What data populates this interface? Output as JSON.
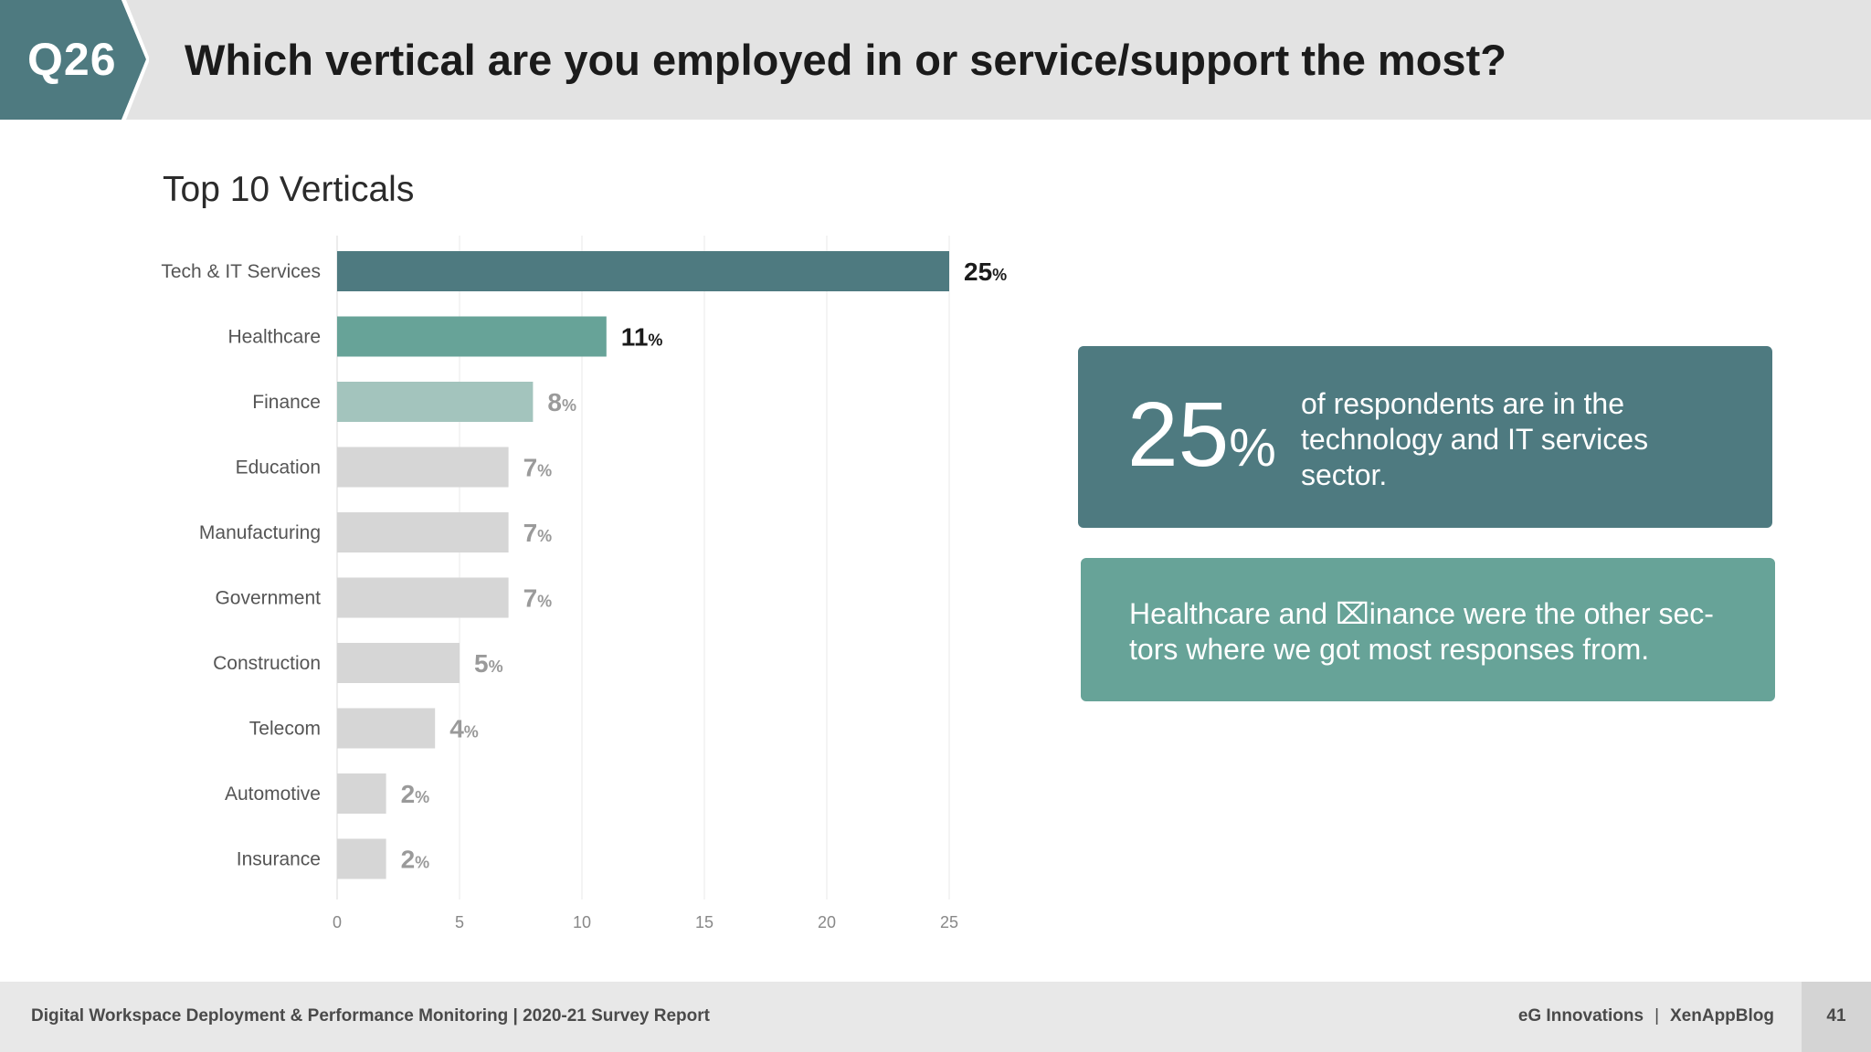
{
  "header": {
    "badge": "Q26",
    "question": "Which vertical are you employed in or service/support the most?"
  },
  "colors": {
    "header_badge": "#4e7a80",
    "bar_top": "#4e7a80",
    "bar_second": "#67a398",
    "bar_third": "#a3c4bd",
    "bar_rest": "#d6d6d6",
    "value_dark": "#1b1b1b",
    "value_light": "#9a9a9a",
    "card_primary": "#4e7a80",
    "card_secondary": "#67a398"
  },
  "chart_data": {
    "type": "bar",
    "orientation": "horizontal",
    "title": "Top 10 Verticals",
    "categories": [
      "Tech & IT Services",
      "Healthcare",
      "Finance",
      "Education",
      "Manufacturing",
      "Government",
      "Construction",
      "Telecom",
      "Automotive",
      "Insurance"
    ],
    "values": [
      25,
      11,
      8,
      7,
      7,
      7,
      5,
      4,
      2,
      2
    ],
    "value_suffix": "%",
    "xlim": [
      0,
      25
    ],
    "xticks": [
      0,
      5,
      10,
      15,
      20,
      25
    ],
    "grid": true,
    "xlabel": "",
    "ylabel": ""
  },
  "callouts": {
    "primary_number": "25",
    "primary_suffix": "%",
    "primary_text": "of respondents are in the technology and IT services sector.",
    "secondary_text": "Healthcare and ⌧inance were the other sec- tors where we got most responses from."
  },
  "footer": {
    "report": "Digital Workspace Deployment & Performance Monitoring | 2020-21 Survey Report",
    "brand_left": "eG Innovations",
    "separator": "|",
    "brand_right": "XenAppBlog",
    "page": "41"
  }
}
